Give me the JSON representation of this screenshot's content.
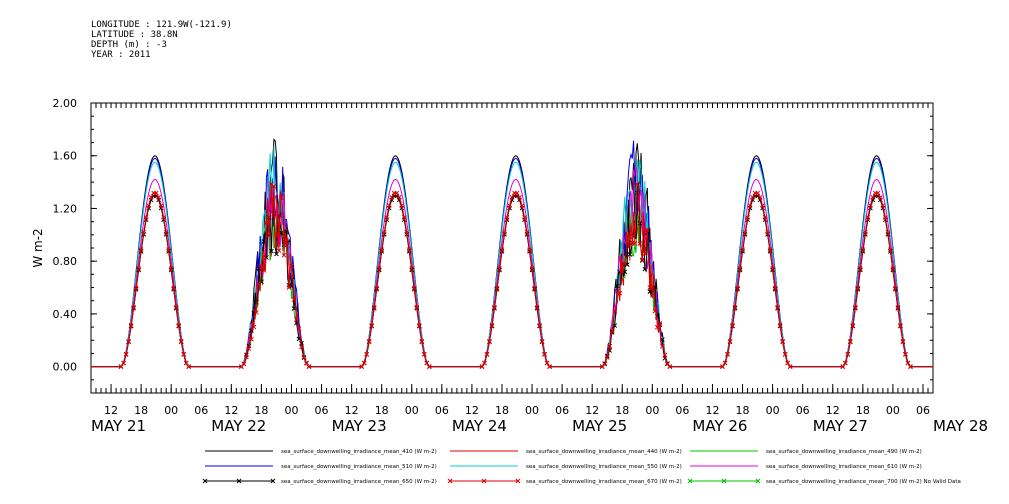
{
  "header": {
    "longitude": "LONGITUDE : 121.9W(-121.9)",
    "latitude": "LATITUDE : 38.8N",
    "depth": "DEPTH (m) : -3",
    "year": "YEAR : 2011"
  },
  "chart_data": {
    "type": "line",
    "ylabel": "W m-2",
    "ylim": [
      -0.2,
      2.0
    ],
    "y_ticks": [
      "0.00",
      "0.40",
      "0.80",
      "1.20",
      "1.60",
      "2.00"
    ],
    "y_tick_values": [
      0.0,
      0.4,
      0.8,
      1.2,
      1.6,
      2.0
    ],
    "x_start_hours": 8,
    "x_end_hours": 176,
    "hour_ticks": [
      "12",
      "18",
      "00",
      "06",
      "12",
      "18",
      "00",
      "06",
      "12",
      "18",
      "00",
      "06",
      "12",
      "18",
      "00",
      "06",
      "12",
      "18",
      "00",
      "06",
      "12",
      "18",
      "00",
      "06",
      "12",
      "18",
      "00",
      "06",
      "12",
      "18",
      "00",
      "06",
      "12",
      "18",
      "00",
      "06",
      "12",
      "18",
      "00",
      "06",
      "12",
      "18",
      "00",
      "06",
      "12",
      "18",
      "00",
      "06",
      "12",
      "18",
      "00",
      "06",
      "12",
      "18",
      "00",
      "06",
      "12",
      "18",
      "00",
      "06",
      "12",
      "18",
      "00",
      "06",
      "12",
      "18",
      "00",
      "06",
      "12",
      "18",
      "00",
      "06",
      "12",
      "18",
      "00",
      "06",
      "12",
      "18",
      "00",
      "06",
      "12",
      "18",
      "00",
      "06",
      "12",
      "18",
      "00",
      "06",
      "12",
      "18",
      "00"
    ],
    "hour_tick_labels_shown": [
      "12",
      "18",
      "00",
      "06",
      "12",
      "18",
      "00",
      "06",
      "12",
      "18",
      "00",
      "06",
      "12",
      "18",
      "00",
      "06",
      "12",
      "18",
      "00",
      "06",
      "12",
      "18",
      "00",
      "06",
      "12",
      "18",
      "00",
      "06",
      "12",
      "18",
      "00",
      "06",
      "12",
      "18",
      "00",
      "06",
      "12",
      "18",
      "00",
      "06",
      "12",
      "18",
      "00",
      "06",
      "12",
      "18",
      "00",
      "06",
      "12",
      "18",
      "00",
      "06",
      "12",
      "18",
      "00"
    ],
    "date_labels": [
      "MAY 21",
      "MAY 22",
      "MAY 23",
      "MAY 24",
      "MAY 25",
      "MAY 26",
      "MAY 27",
      "MAY 28"
    ],
    "grid": false,
    "legend_position": "bottom",
    "days": [
      {
        "peak_hour": 19.5,
        "sunrise": 14,
        "sunset": 27.5,
        "scale": 1.0,
        "cloudy": false
      },
      {
        "peak_hour": 43.5,
        "sunrise": 38,
        "sunset": 51.5,
        "scale": 1.0,
        "cloudy": true
      },
      {
        "peak_hour": 67.5,
        "sunrise": 62,
        "sunset": 75.5,
        "scale": 1.0,
        "cloudy": false
      },
      {
        "peak_hour": 91.5,
        "sunrise": 86,
        "sunset": 99.5,
        "scale": 1.0,
        "cloudy": false
      },
      {
        "peak_hour": 115.5,
        "sunrise": 110,
        "sunset": 123.5,
        "scale": 1.0,
        "cloudy": true
      },
      {
        "peak_hour": 139.5,
        "sunrise": 134,
        "sunset": 147.5,
        "scale": 1.0,
        "cloudy": false
      },
      {
        "peak_hour": 163.5,
        "sunrise": 158,
        "sunset": 171.5,
        "scale": 1.0,
        "cloudy": false
      }
    ],
    "series": [
      {
        "name": "sea_surface_downwelling_irradiance_mean_410 (W m-2)",
        "color": "#000000",
        "peak": 1.6,
        "marker": "none"
      },
      {
        "name": "sea_surface_downwelling_irradiance_mean_440 (W m-2)",
        "color": "#e00000",
        "peak": 1.3,
        "marker": "none"
      },
      {
        "name": "sea_surface_downwelling_irradiance_mean_490 (W m-2)",
        "color": "#00c000",
        "peak": 1.3,
        "marker": "none"
      },
      {
        "name": "sea_surface_downwelling_irradiance_mean_510 (W m-2)",
        "color": "#0000e0",
        "peak": 1.58,
        "marker": "none"
      },
      {
        "name": "sea_surface_downwelling_irradiance_mean_550 (W m-2)",
        "color": "#00d0d0",
        "peak": 1.55,
        "marker": "none"
      },
      {
        "name": "sea_surface_downwelling_irradiance_mean_610 (W m-2)",
        "color": "#e000e0",
        "peak": 1.42,
        "marker": "none"
      },
      {
        "name": "sea_surface_downwelling_irradiance_mean_650 (W m-2)",
        "color": "#000000",
        "peak": 1.3,
        "marker": "x"
      },
      {
        "name": "sea_surface_downwelling_irradiance_mean_670 (W m-2)",
        "color": "#e00000",
        "peak": 1.32,
        "marker": "x"
      },
      {
        "name": "sea_surface_downwelling_irradiance_mean_700 (W m-2) No Valid Data",
        "color": "#00c000",
        "peak": null,
        "marker": "x"
      }
    ]
  }
}
